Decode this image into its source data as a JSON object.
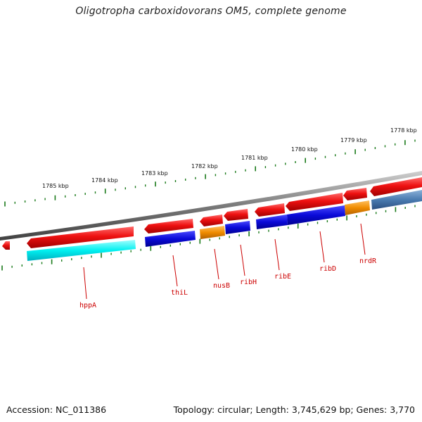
{
  "title": "Oligotropha carboxidovorans OM5, complete genome",
  "footer": {
    "accession": "Accession: NC_011386",
    "summary": "Topology: circular; Length: 3,745,629 bp; Genes: 3,770"
  },
  "scale_labels": [
    "1785 kbp",
    "1784 kbp",
    "1783 kbp",
    "1782 kbp",
    "1781 kbp",
    "1780 kbp",
    "1779 kbp",
    "1778 kbp"
  ],
  "gene_labels": [
    "hppA",
    "thiL",
    "nusB",
    "ribH",
    "ribE",
    "ribD",
    "nrdR"
  ],
  "colors": {
    "forward_strand": "#ee1111",
    "blue_feature": "#0a0ad8",
    "cyan_feature": "#00f0f0",
    "orange_feature": "#f08c00",
    "steel_feature": "#4a7bb0",
    "backbone": "#7a7a7a",
    "tick": "#1a7a1a",
    "label": "#cc0000"
  }
}
